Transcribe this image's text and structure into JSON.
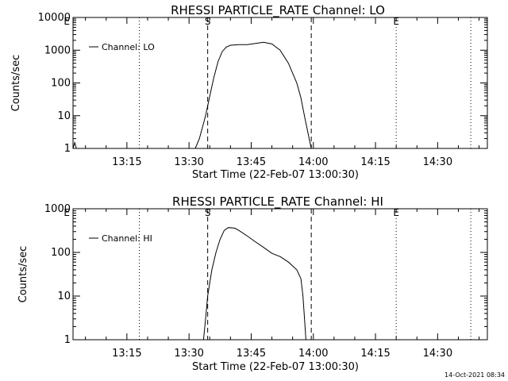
{
  "timestamp": "14-Oct-2021 08:34",
  "chart_data": [
    {
      "type": "line",
      "title": "RHESSI PARTICLE_RATE Channel: LO",
      "xlabel": "Start Time (22-Feb-07 13:00:30)",
      "ylabel": "Counts/sec",
      "yscale": "log",
      "xlim": [
        "13:02",
        "14:42"
      ],
      "ylim": [
        1,
        10000
      ],
      "x_ticks": [
        "13:15",
        "13:30",
        "13:45",
        "14:00",
        "14:15",
        "14:30"
      ],
      "y_ticks": [
        "1",
        "10",
        "100",
        "1000",
        "10000"
      ],
      "legend": {
        "position": "top-left",
        "entries": [
          "Channel: LO"
        ]
      },
      "markers": [
        {
          "label": "E",
          "time": "13:00.5",
          "style": "dotted"
        },
        {
          "label": "",
          "time": "13:18",
          "style": "dotted"
        },
        {
          "label": "S",
          "time": "13:34.5",
          "style": "dashed"
        },
        {
          "label": "",
          "time": "13:59.5",
          "style": "dashed"
        },
        {
          "label": "E",
          "time": "14:20",
          "style": "dotted"
        },
        {
          "label": "",
          "time": "14:38",
          "style": "dotted"
        }
      ],
      "series": [
        {
          "name": "Channel: LO",
          "points": [
            [
              "13:02",
              1
            ],
            [
              "13:02.4",
              1.5
            ],
            [
              "13:02.8",
              1
            ],
            [
              "13:31.5",
              1
            ],
            [
              "13:32.5",
              2
            ],
            [
              "13:34",
              10
            ],
            [
              "13:35",
              40
            ],
            [
              "13:36",
              150
            ],
            [
              "13:37",
              450
            ],
            [
              "13:38",
              900
            ],
            [
              "13:39",
              1250
            ],
            [
              "13:40",
              1420
            ],
            [
              "13:42",
              1480
            ],
            [
              "13:44",
              1480
            ],
            [
              "13:46",
              1600
            ],
            [
              "13:48",
              1750
            ],
            [
              "13:50",
              1550
            ],
            [
              "13:52",
              1000
            ],
            [
              "13:54",
              400
            ],
            [
              "13:56",
              100
            ],
            [
              "13:57",
              35
            ],
            [
              "13:58",
              8
            ],
            [
              "13:59",
              2
            ],
            [
              "13:59.5",
              1
            ]
          ]
        }
      ]
    },
    {
      "type": "line",
      "title": "RHESSI PARTICLE_RATE Channel: HI",
      "xlabel": "Start Time (22-Feb-07 13:00:30)",
      "ylabel": "Counts/sec",
      "yscale": "log",
      "xlim": [
        "13:02",
        "14:42"
      ],
      "ylim": [
        1,
        1000
      ],
      "x_ticks": [
        "13:15",
        "13:30",
        "13:45",
        "14:00",
        "14:15",
        "14:30"
      ],
      "y_ticks": [
        "1",
        "10",
        "100",
        "1000"
      ],
      "legend": {
        "position": "top-left",
        "entries": [
          "Channel: HI"
        ]
      },
      "markers": [
        {
          "label": "E",
          "time": "13:00.5",
          "style": "dotted"
        },
        {
          "label": "",
          "time": "13:18",
          "style": "dotted"
        },
        {
          "label": "S",
          "time": "13:34.5",
          "style": "dashed"
        },
        {
          "label": "",
          "time": "13:59.5",
          "style": "dashed"
        },
        {
          "label": "E",
          "time": "14:20",
          "style": "dotted"
        },
        {
          "label": "",
          "time": "14:38",
          "style": "dotted"
        }
      ],
      "series": [
        {
          "name": "Channel: HI",
          "points": [
            [
              "13:33.5",
              1
            ],
            [
              "13:34",
              3
            ],
            [
              "13:34.5",
              10
            ],
            [
              "13:35.5",
              40
            ],
            [
              "13:36.5",
              100
            ],
            [
              "13:37.5",
              200
            ],
            [
              "13:38.5",
              320
            ],
            [
              "13:39.5",
              370
            ],
            [
              "13:41",
              360
            ],
            [
              "13:42",
              320
            ],
            [
              "13:44",
              240
            ],
            [
              "13:46",
              175
            ],
            [
              "13:48",
              130
            ],
            [
              "13:50",
              95
            ],
            [
              "13:52",
              80
            ],
            [
              "13:54",
              60
            ],
            [
              "13:56",
              40
            ],
            [
              "13:57",
              25
            ],
            [
              "13:57.5",
              10
            ],
            [
              "13:58",
              2
            ],
            [
              "13:58.2",
              1
            ]
          ]
        }
      ]
    }
  ]
}
